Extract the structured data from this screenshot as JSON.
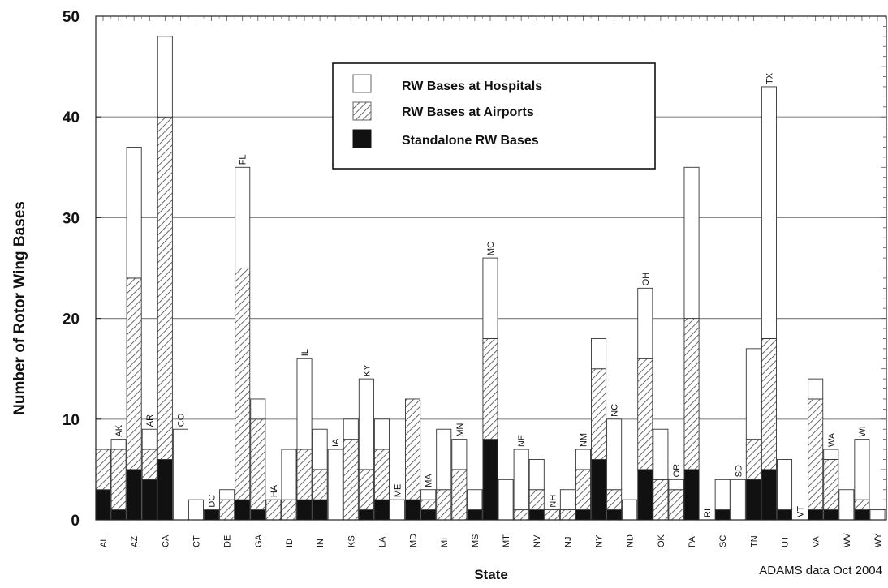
{
  "chart_data": {
    "type": "bar",
    "stacked": true,
    "ylabel": "Number of Rotor Wing Bases",
    "xlabel": "State",
    "footnote": "ADAMS data Oct 2004",
    "ylim": [
      0,
      50
    ],
    "yticks": [
      0,
      10,
      20,
      30,
      40,
      50
    ],
    "grid": true,
    "legend_position": "top-center",
    "categories": [
      "AL",
      "AK",
      "AZ",
      "AR",
      "CA",
      "CO",
      "CT",
      "DC",
      "DE",
      "FL",
      "GA",
      "HA",
      "ID",
      "IL",
      "IN",
      "IA",
      "KS",
      "KY",
      "LA",
      "ME",
      "MD",
      "MA",
      "MI",
      "MN",
      "MS",
      "MO",
      "MT",
      "NE",
      "NV",
      "NH",
      "NJ",
      "NM",
      "NY",
      "NC",
      "ND",
      "OH",
      "OK",
      "OR",
      "PA",
      "RI",
      "SC",
      "SD",
      "TN",
      "TX",
      "UT",
      "VT",
      "VA",
      "WA",
      "WV",
      "WI",
      "WY"
    ],
    "category_label_position": [
      "bottom",
      "top",
      "bottom",
      "top",
      "bottom",
      "top",
      "bottom",
      "top",
      "bottom",
      "top",
      "bottom",
      "top",
      "bottom",
      "top",
      "bottom",
      "top",
      "bottom",
      "top",
      "bottom",
      "top",
      "bottom",
      "top",
      "bottom",
      "top",
      "bottom",
      "top",
      "bottom",
      "top",
      "bottom",
      "top",
      "bottom",
      "top",
      "bottom",
      "top",
      "bottom",
      "top",
      "bottom",
      "top",
      "bottom",
      "top",
      "bottom",
      "top",
      "bottom",
      "top",
      "bottom",
      "top",
      "bottom",
      "top",
      "bottom",
      "top",
      "bottom"
    ],
    "series": [
      {
        "name": "Standalone RW Bases",
        "pattern": "solid-black",
        "values": [
          3,
          1,
          5,
          4,
          6,
          0,
          0,
          1,
          0,
          2,
          1,
          0,
          0,
          2,
          2,
          0,
          0,
          1,
          2,
          0,
          2,
          1,
          0,
          0,
          1,
          8,
          0,
          0,
          1,
          0,
          0,
          1,
          6,
          1,
          0,
          5,
          0,
          0,
          5,
          0,
          1,
          0,
          4,
          5,
          1,
          0,
          1,
          1,
          0,
          1,
          0
        ]
      },
      {
        "name": "RW Bases at Airports",
        "pattern": "hatched",
        "values": [
          4,
          6,
          19,
          3,
          34,
          0,
          0,
          0,
          2,
          23,
          9,
          2,
          2,
          5,
          3,
          0,
          8,
          4,
          5,
          0,
          10,
          1,
          3,
          5,
          0,
          10,
          0,
          1,
          2,
          1,
          1,
          4,
          9,
          2,
          0,
          11,
          4,
          3,
          15,
          0,
          0,
          0,
          4,
          13,
          0,
          0,
          11,
          5,
          0,
          1,
          0
        ]
      },
      {
        "name": "RW Bases at Hospitals",
        "pattern": "white",
        "values": [
          0,
          1,
          13,
          2,
          8,
          9,
          2,
          0,
          1,
          10,
          2,
          0,
          5,
          9,
          4,
          7,
          2,
          9,
          3,
          2,
          0,
          1,
          6,
          3,
          2,
          8,
          4,
          6,
          3,
          0,
          2,
          2,
          3,
          7,
          2,
          7,
          5,
          1,
          15,
          0,
          3,
          4,
          9,
          25,
          5,
          0,
          2,
          1,
          3,
          6,
          1
        ]
      }
    ],
    "legend": [
      "RW Bases at Hospitals",
      "RW Bases at Airports",
      "Standalone RW Bases"
    ]
  }
}
